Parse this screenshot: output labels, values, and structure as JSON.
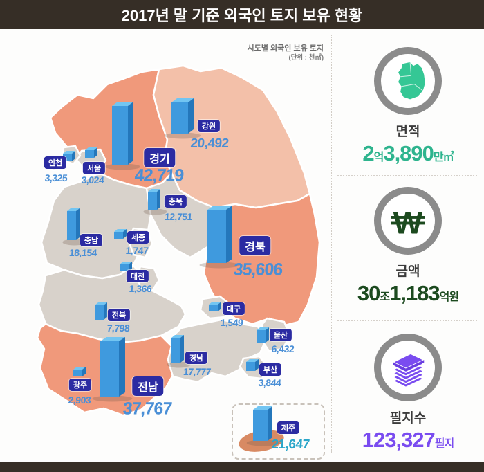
{
  "header": {
    "title": "2017년 말 기준 외국인 토지 보유 현황"
  },
  "map": {
    "subtitle": "시도별 외국인 보유 토지",
    "unit": "(단위 : 천㎡)"
  },
  "regions": [
    {
      "id": "incheon",
      "label": "인천",
      "value": "3,325"
    },
    {
      "id": "seoul",
      "label": "서울",
      "value": "3,024"
    },
    {
      "id": "gyeonggi",
      "label": "경기",
      "value": "42,719"
    },
    {
      "id": "gangwon",
      "label": "강원",
      "value": "20,492"
    },
    {
      "id": "chungbuk",
      "label": "충북",
      "value": "12,751"
    },
    {
      "id": "chungnam",
      "label": "충남",
      "value": "18,154"
    },
    {
      "id": "sejong",
      "label": "세종",
      "value": "1,747"
    },
    {
      "id": "daejeon",
      "label": "대전",
      "value": "1,366"
    },
    {
      "id": "gyeongbuk",
      "label": "경북",
      "value": "35,606"
    },
    {
      "id": "daegu",
      "label": "대구",
      "value": "1,549"
    },
    {
      "id": "ulsan",
      "label": "울산",
      "value": "6,432"
    },
    {
      "id": "busan",
      "label": "부산",
      "value": "3,844"
    },
    {
      "id": "gyeongnam",
      "label": "경남",
      "value": "17,777"
    },
    {
      "id": "jeonbuk",
      "label": "전북",
      "value": "7,798"
    },
    {
      "id": "gwangju",
      "label": "광주",
      "value": "2,903"
    },
    {
      "id": "jeonnam",
      "label": "전남",
      "value": "37,767"
    },
    {
      "id": "jeju",
      "label": "제주",
      "value": "21,647"
    }
  ],
  "chart_data": {
    "type": "bar",
    "title": "시도별 외국인 보유 토지",
    "unit": "천㎡",
    "layout": "choropleth-map-with-3d-bars",
    "categories": [
      "인천",
      "서울",
      "경기",
      "강원",
      "충북",
      "충남",
      "세종",
      "대전",
      "경북",
      "대구",
      "울산",
      "부산",
      "경남",
      "전북",
      "광주",
      "전남",
      "제주"
    ],
    "values": [
      3325,
      3024,
      42719,
      20492,
      12751,
      18154,
      1747,
      1366,
      35606,
      1549,
      6432,
      3844,
      17777,
      7798,
      2903,
      37767,
      21647
    ],
    "totals": {
      "area": "2억3,890만㎡",
      "amount": "30조1,183억원",
      "parcels": "123,327필지"
    }
  },
  "sidebar": {
    "area": {
      "label": "면적",
      "v1": "2",
      "u1": "억",
      "v2": "3,890",
      "u2": "만㎡"
    },
    "amount": {
      "label": "금액",
      "v1": "30",
      "u1": "조",
      "v2": "1,183",
      "u2": "억원"
    },
    "parcels": {
      "label": "필지수",
      "v1": "123,327",
      "u1": "필지"
    }
  },
  "colors": {
    "frame_brown": "#362e26",
    "region_salmon": "#f0997b",
    "region_light_salmon": "#f3c0a9",
    "region_gray": "#d8d2cb",
    "bar_front": "#3f9ade",
    "bar_top": "#72c5f2",
    "bar_side": "#2477bb",
    "label_bg": "#2b2ba2",
    "value_blue": "#4a8fd6",
    "jeju_value_cyan": "#2aa6c9",
    "area_green": "#2eb48e",
    "amount_green": "#1c4a1f",
    "parcels_purple": "#7a4cf0"
  }
}
